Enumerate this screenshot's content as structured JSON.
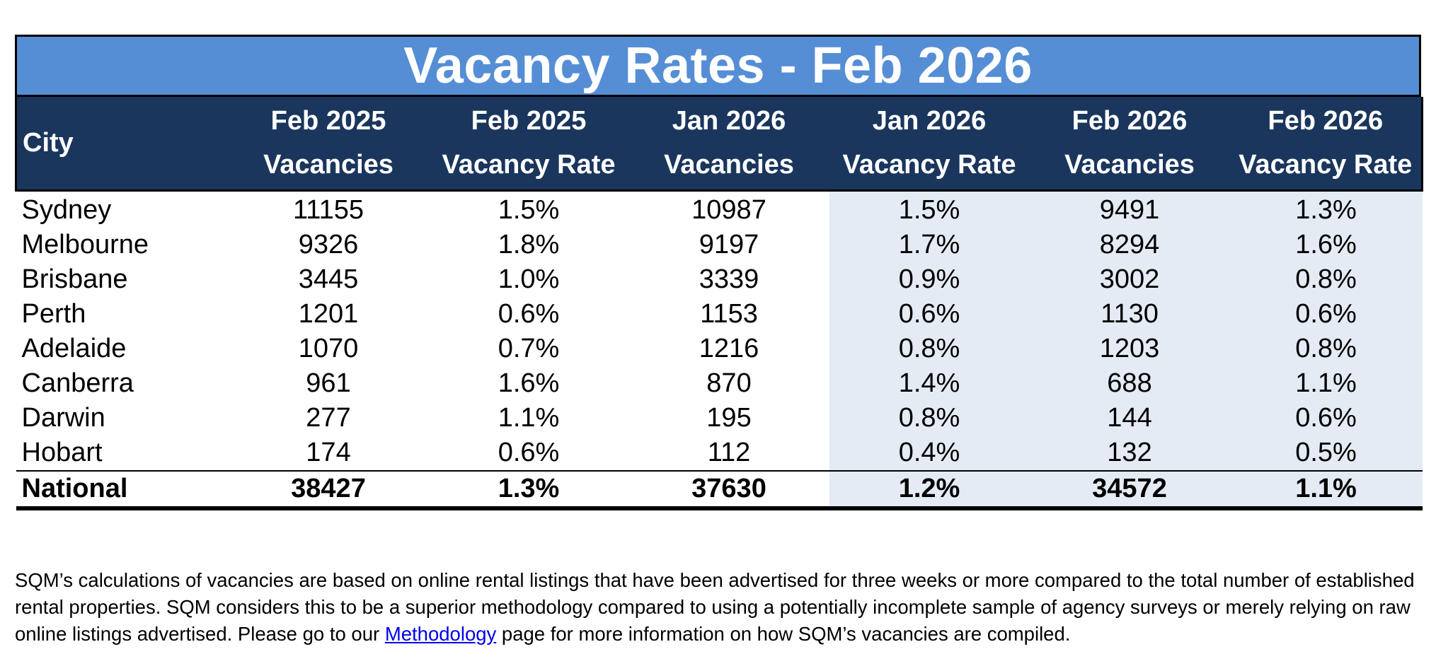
{
  "title": "Vacancy Rates - Feb 2026",
  "columns": [
    {
      "line1": "City",
      "line2": ""
    },
    {
      "line1": "Feb 2025",
      "line2": "Vacancies"
    },
    {
      "line1": "Feb 2025",
      "line2": "Vacancy Rate"
    },
    {
      "line1": "Jan 2026",
      "line2": "Vacancies"
    },
    {
      "line1": "Jan 2026",
      "line2": "Vacancy Rate"
    },
    {
      "line1": "Feb 2026",
      "line2": "Vacancies"
    },
    {
      "line1": "Feb 2026",
      "line2": "Vacancy Rate"
    }
  ],
  "rows": [
    [
      "Sydney",
      "11155",
      "1.5%",
      "10987",
      "1.5%",
      "9491",
      "1.3%"
    ],
    [
      "Melbourne",
      "9326",
      "1.8%",
      "9197",
      "1.7%",
      "8294",
      "1.6%"
    ],
    [
      "Brisbane",
      "3445",
      "1.0%",
      "3339",
      "0.9%",
      "3002",
      "0.8%"
    ],
    [
      "Perth",
      "1201",
      "0.6%",
      "1153",
      "0.6%",
      "1130",
      "0.6%"
    ],
    [
      "Adelaide",
      "1070",
      "0.7%",
      "1216",
      "0.8%",
      "1203",
      "0.8%"
    ],
    [
      "Canberra",
      "961",
      "1.6%",
      "870",
      "1.4%",
      "688",
      "1.1%"
    ],
    [
      "Darwin",
      "277",
      "1.1%",
      "195",
      "0.8%",
      "144",
      "0.6%"
    ],
    [
      "Hobart",
      "174",
      "0.6%",
      "112",
      "0.4%",
      "132",
      "0.5%"
    ]
  ],
  "national": [
    "National",
    "38427",
    "1.3%",
    "37630",
    "1.2%",
    "34572",
    "1.1%"
  ],
  "footnote": {
    "before_link": "SQM’s calculations of vacancies are based on online rental listings that have been advertised for three weeks or more compared to the total number of established rental properties. SQM considers this to be a superior methodology compared to using a potentially incomplete sample of agency surveys or merely relying on raw online listings advertised. Please go to our ",
    "link_text": "Methodology",
    "after_link": " page for more information on how SQM’s vacancies are compiled."
  },
  "colors": {
    "title_bg": "#558ed5",
    "header_bg": "#1b365d",
    "shade_bg": "#e4ebf5",
    "link": "#0000ee"
  }
}
